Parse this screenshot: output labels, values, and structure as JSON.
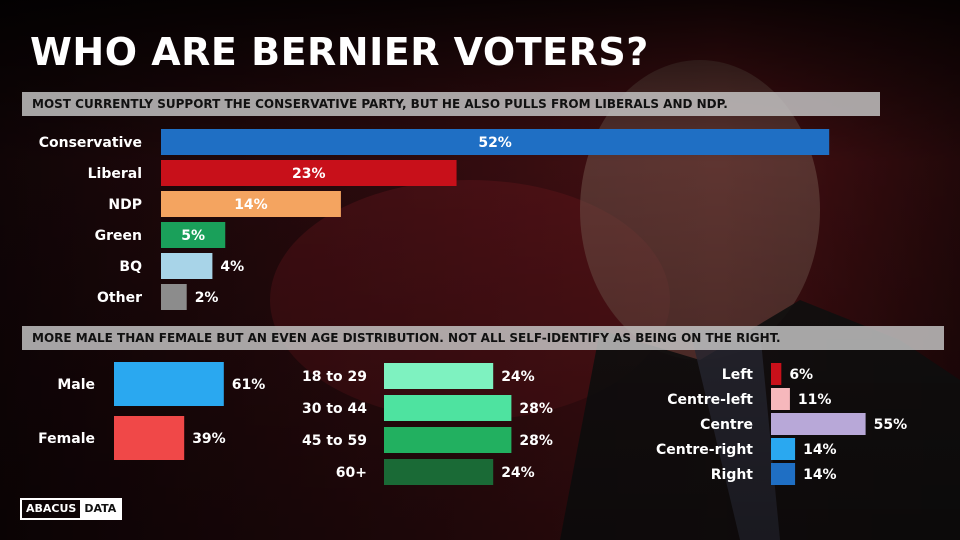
{
  "title": "WHO ARE BERNIER VOTERS?",
  "subtitle_party": "MOST CURRENTLY SUPPORT THE CONSERVATIVE PARTY, BUT HE ALSO PULLS FROM LIBERALS AND NDP.",
  "subtitle_demo": "MORE MALE THAN FEMALE BUT AN EVEN AGE DISTRIBUTION.  NOT ALL SELF-IDENTIFY AS BEING ON THE RIGHT.",
  "logo": {
    "left": "ABACUS",
    "right": "DATA"
  },
  "chart_data": [
    {
      "type": "bar",
      "orientation": "horizontal",
      "categories": [
        "Conservative",
        "Liberal",
        "NDP",
        "Green",
        "BQ",
        "Other"
      ],
      "values": [
        52,
        23,
        14,
        5,
        4,
        2
      ],
      "labels": [
        "52%",
        "23%",
        "14%",
        "5%",
        "4%",
        "2%"
      ],
      "colors": [
        "#1f6fc4",
        "#c8101a",
        "#f4a460",
        "#1aa05a",
        "#a8d4e8",
        "#8c8c8c"
      ]
    },
    {
      "type": "bar",
      "orientation": "horizontal",
      "categories": [
        "Male",
        "Female"
      ],
      "values": [
        61,
        39
      ],
      "labels": [
        "61%",
        "39%"
      ],
      "colors": [
        "#2aa8f0",
        "#f04848"
      ]
    },
    {
      "type": "bar",
      "orientation": "horizontal",
      "categories": [
        "18 to 29",
        "30 to 44",
        "45 to 59",
        "60+"
      ],
      "values": [
        24,
        28,
        28,
        24
      ],
      "labels": [
        "24%",
        "28%",
        "28%",
        "24%"
      ],
      "colors": [
        "#7ef2c0",
        "#4ee3a0",
        "#22b060",
        "#1a6a36"
      ]
    },
    {
      "type": "bar",
      "orientation": "horizontal",
      "categories": [
        "Left",
        "Centre-left",
        "Centre",
        "Centre-right",
        "Right"
      ],
      "values": [
        6,
        11,
        55,
        14,
        14
      ],
      "labels": [
        "6%",
        "11%",
        "55%",
        "14%",
        "14%"
      ],
      "colors": [
        "#c8101a",
        "#f6b8bc",
        "#b8a8d8",
        "#2aa8f0",
        "#1f6fc4"
      ]
    }
  ]
}
